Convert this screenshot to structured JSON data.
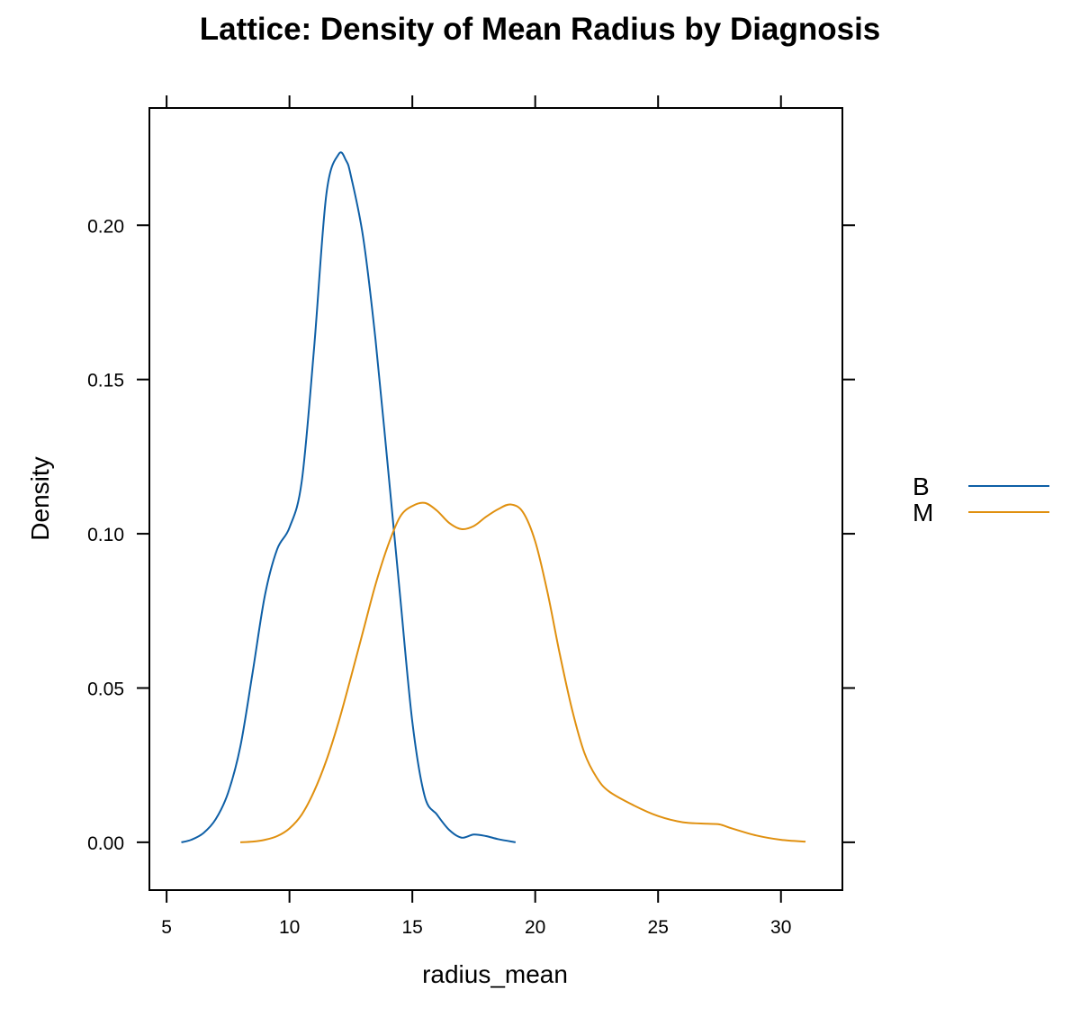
{
  "chart_data": {
    "type": "line",
    "title": "Lattice: Density of Mean Radius by Diagnosis",
    "xlabel": "radius_mean",
    "ylabel": "Density",
    "xlim": [
      4.3,
      32.5
    ],
    "ylim": [
      -0.0155,
      0.238
    ],
    "x_ticks": [
      5,
      10,
      15,
      20,
      25,
      30
    ],
    "x_tick_labels": [
      "5",
      "10",
      "15",
      "20",
      "25",
      "30"
    ],
    "y_ticks": [
      0.0,
      0.05,
      0.1,
      0.15,
      0.2
    ],
    "y_tick_labels": [
      "0.00",
      "0.05",
      "0.10",
      "0.15",
      "0.20"
    ],
    "grid": false,
    "legend_position": "right",
    "series": [
      {
        "name": "B",
        "color": "#0E5FA6",
        "x": [
          5.6,
          6.0,
          6.5,
          7.0,
          7.5,
          8.0,
          8.5,
          9.0,
          9.5,
          10.0,
          10.5,
          11.0,
          11.5,
          12.0,
          12.3,
          12.5,
          13.0,
          13.5,
          14.0,
          14.5,
          15.0,
          15.5,
          16.0,
          16.5,
          17.0,
          17.5,
          18.0,
          18.5,
          19.2
        ],
        "y": [
          0.0,
          0.0008,
          0.003,
          0.0075,
          0.016,
          0.031,
          0.055,
          0.08,
          0.095,
          0.102,
          0.117,
          0.16,
          0.21,
          0.223,
          0.221,
          0.216,
          0.196,
          0.163,
          0.122,
          0.08,
          0.039,
          0.015,
          0.009,
          0.004,
          0.0015,
          0.0025,
          0.002,
          0.001,
          0.0
        ]
      },
      {
        "name": "M",
        "color": "#E0900F",
        "x": [
          8.0,
          8.5,
          9.0,
          9.5,
          10.0,
          10.5,
          11.0,
          11.5,
          12.0,
          12.5,
          13.0,
          13.5,
          14.0,
          14.5,
          15.0,
          15.5,
          16.0,
          16.5,
          17.0,
          17.5,
          18.0,
          18.5,
          19.0,
          19.5,
          20.0,
          20.5,
          21.0,
          21.5,
          22.0,
          22.5,
          23.0,
          24.0,
          25.0,
          26.0,
          27.0,
          27.5,
          28.0,
          29.0,
          30.0,
          31.0
        ],
        "y": [
          0.0,
          0.0002,
          0.0008,
          0.002,
          0.0045,
          0.009,
          0.0165,
          0.0265,
          0.039,
          0.0535,
          0.0685,
          0.0835,
          0.096,
          0.1055,
          0.109,
          0.11,
          0.1075,
          0.1035,
          0.1015,
          0.1025,
          0.1055,
          0.108,
          0.1095,
          0.107,
          0.0975,
          0.081,
          0.061,
          0.043,
          0.029,
          0.021,
          0.0165,
          0.012,
          0.0085,
          0.0065,
          0.006,
          0.0058,
          0.0045,
          0.0022,
          0.0008,
          0.0002
        ]
      }
    ]
  }
}
